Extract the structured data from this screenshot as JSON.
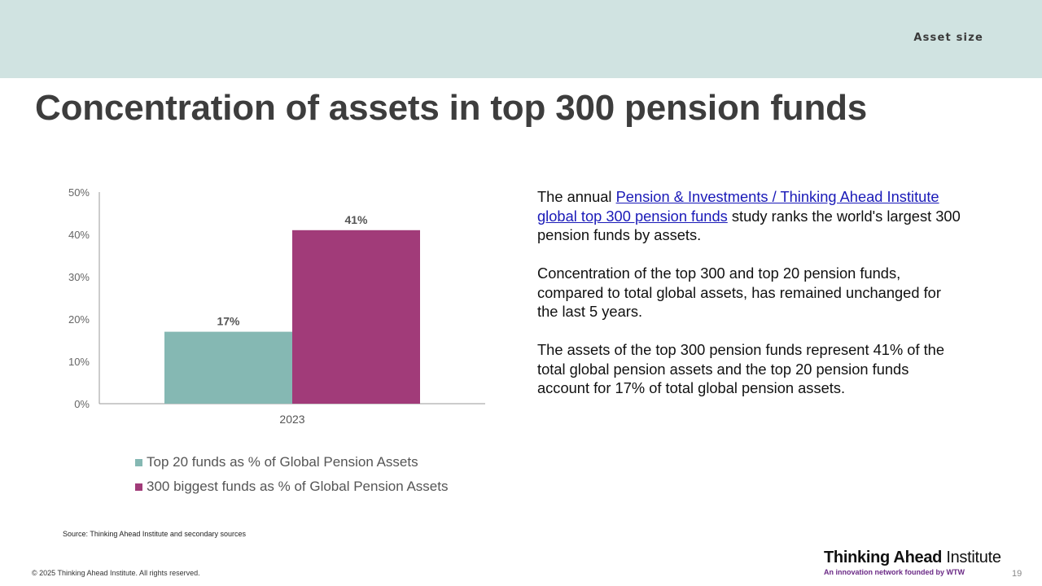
{
  "header": {
    "section_label": "Asset size"
  },
  "title": "Concentration of assets in top 300 pension funds",
  "chart_data": {
    "type": "bar",
    "categories": [
      "2023"
    ],
    "series": [
      {
        "name": "Top 20 funds as % of Global Pension Assets",
        "values": [
          17
        ],
        "color": "#85b8b3",
        "data_labels": [
          "17%"
        ]
      },
      {
        "name": "300 biggest funds as % of Global Pension Assets",
        "values": [
          41
        ],
        "color": "#a13b79",
        "data_labels": [
          "41%"
        ]
      }
    ],
    "ylim": [
      0,
      50
    ],
    "y_ticks": [
      0,
      10,
      20,
      30,
      40,
      50
    ],
    "y_tick_labels": [
      "0%",
      "10%",
      "20%",
      "30%",
      "40%",
      "50%"
    ],
    "grid": false,
    "legend_position": "bottom",
    "xlabel": "",
    "ylabel": ""
  },
  "source": "Source: Thinking Ahead Institute and secondary sources",
  "body": {
    "p1_prefix": "The annual ",
    "p1_link": "Pension & Investments / Thinking Ahead Institute global top 300 pension funds",
    "p1_suffix": " study ranks the world's largest 300 pension funds by assets.",
    "p2": "Concentration of the top 300 and top 20 pension funds, compared to total global assets, has remained unchanged for the last 5 years.",
    "p3": "The assets of the top 300 pension funds represent 41% of the total global pension assets and the top 20 pension funds account for 17% of total global pension assets."
  },
  "footer": {
    "copyright": "© 2025 Thinking Ahead Institute. All rights reserved.",
    "brand_bold": "Thinking Ahead",
    "brand_regular": " Institute",
    "brand_tagline": "An innovation network founded by WTW",
    "page_number": "19"
  }
}
